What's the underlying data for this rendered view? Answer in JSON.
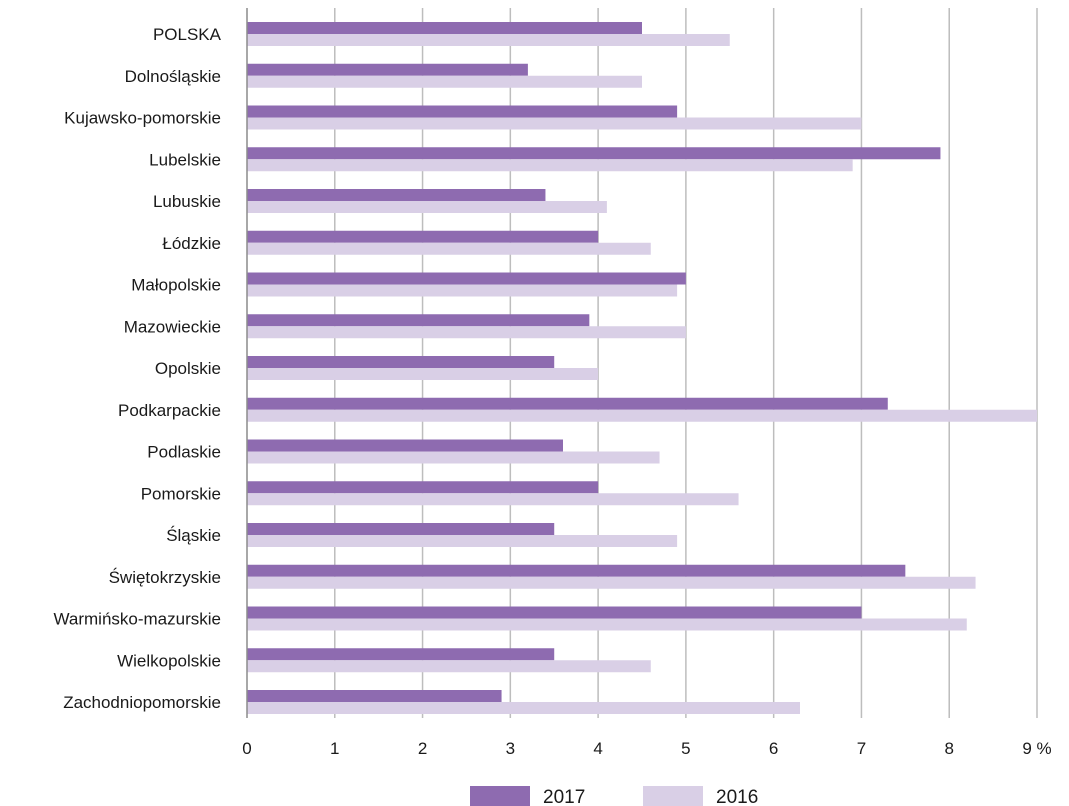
{
  "chart_data": {
    "type": "bar",
    "orientation": "horizontal",
    "categories": [
      "POLSKA",
      "Dolnośląskie",
      "Kujawsko-pomorskie",
      "Lubelskie",
      "Lubuskie",
      "Łódzkie",
      "Małopolskie",
      "Mazowieckie",
      "Opolskie",
      "Podkarpackie",
      "Podlaskie",
      "Pomorskie",
      "Śląskie",
      "Świętokrzyskie",
      "Warmińsko-mazurskie",
      "Wielkopolskie",
      "Zachodniopomorskie"
    ],
    "series": [
      {
        "name": "2017",
        "color": "#8e6bb0",
        "values": [
          4.5,
          3.2,
          4.9,
          7.9,
          3.4,
          4.0,
          5.0,
          3.9,
          3.5,
          7.3,
          3.6,
          4.0,
          3.5,
          7.5,
          7.0,
          3.5,
          2.9
        ]
      },
      {
        "name": "2016",
        "color": "#d9cfe6",
        "values": [
          5.5,
          4.5,
          7.0,
          6.9,
          4.1,
          4.6,
          4.9,
          5.0,
          4.0,
          9.0,
          4.7,
          5.6,
          4.9,
          8.3,
          8.2,
          4.6,
          6.3
        ]
      }
    ],
    "xlim": [
      0,
      9
    ],
    "x_ticks": [
      "0",
      "1",
      "2",
      "3",
      "4",
      "5",
      "6",
      "7",
      "8",
      "9 %"
    ],
    "grid": "vertical",
    "legend": "bottom-center",
    "title": "",
    "xlabel": "",
    "ylabel": ""
  }
}
